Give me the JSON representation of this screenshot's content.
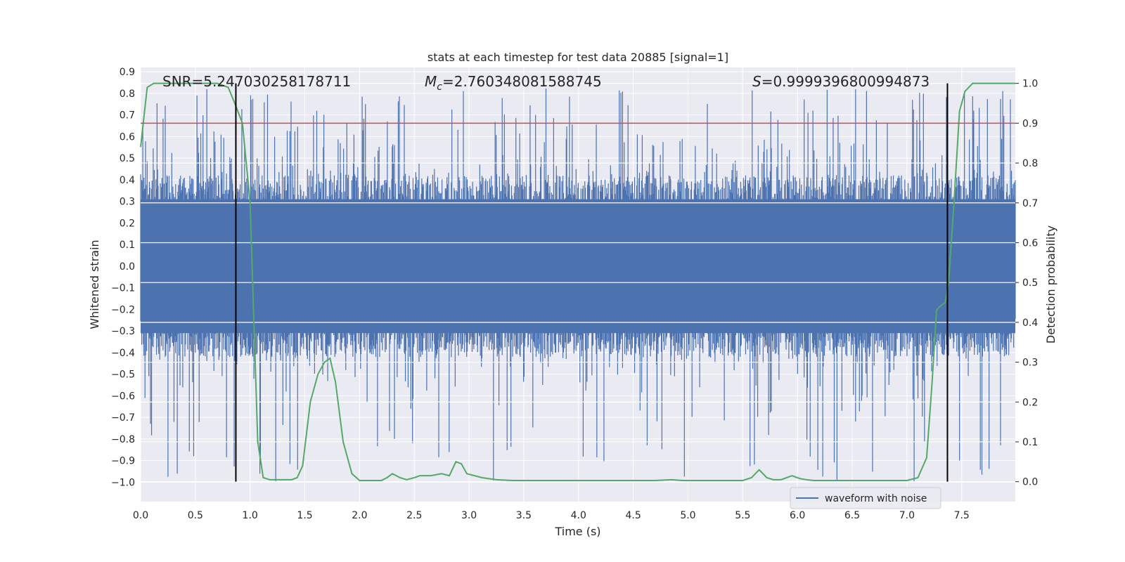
{
  "chart_data": {
    "type": "line",
    "title": "stats at each timestep for test data 20885 [signal=1]",
    "xlabel": "Time (s)",
    "ylabel": "Whitened strain",
    "y2label": "Detection probability",
    "xlim": [
      0.0,
      7.99
    ],
    "ylim": [
      -1.09,
      0.92
    ],
    "y2lim": [
      -0.05,
      1.04
    ],
    "x_ticks": [
      0.0,
      0.5,
      1.0,
      1.5,
      2.0,
      2.5,
      3.0,
      3.5,
      4.0,
      4.5,
      5.0,
      5.5,
      6.0,
      6.5,
      7.0,
      7.5
    ],
    "x_tick_labels": [
      "0.0",
      "0.5",
      "1.0",
      "1.5",
      "2.0",
      "2.5",
      "3.0",
      "3.5",
      "4.0",
      "4.5",
      "5.0",
      "5.5",
      "6.0",
      "6.5",
      "7.0",
      "7.5"
    ],
    "y_ticks": [
      -1.0,
      -0.9,
      -0.8,
      -0.7,
      -0.6,
      -0.5,
      -0.4,
      -0.3,
      -0.2,
      -0.1,
      0.0,
      0.1,
      0.2,
      0.3,
      0.4,
      0.5,
      0.6,
      0.7,
      0.8,
      0.9
    ],
    "y_tick_labels": [
      "−1.0",
      "−0.9",
      "−0.8",
      "−0.7",
      "−0.6",
      "−0.5",
      "−0.4",
      "−0.3",
      "−0.2",
      "−0.1",
      "0.0",
      "0.1",
      "0.2",
      "0.3",
      "0.4",
      "0.5",
      "0.6",
      "0.7",
      "0.8",
      "0.9"
    ],
    "y2_ticks": [
      0.0,
      0.1,
      0.2,
      0.3,
      0.4,
      0.5,
      0.6,
      0.7,
      0.8,
      0.9,
      1.0
    ],
    "y2_tick_labels": [
      "0.0",
      "0.1",
      "0.2",
      "0.3",
      "0.4",
      "0.5",
      "0.6",
      "0.7",
      "0.8",
      "0.9",
      "1.0"
    ],
    "annotations": {
      "snr": "SNR=5.247030258178711",
      "mc_symbol": "M",
      "mc_subscript": "c",
      "mc_value": "=2.760348081588745",
      "s_symbol": "S",
      "s_value": "=0.9999396800994873"
    },
    "threshold": 0.9,
    "vlines": [
      0.87,
      7.37
    ],
    "waveform": {
      "name": "waveform with noise",
      "samples": 1600,
      "band_upper": 0.42,
      "band_lower": -0.42,
      "spike_max": 0.83,
      "spike_min": -1.0
    },
    "probability": {
      "name": "detection probability",
      "x": [
        0.0,
        0.06,
        0.12,
        0.2,
        0.3,
        0.4,
        0.5,
        0.6,
        0.7,
        0.8,
        0.86,
        0.93,
        1.0,
        1.07,
        1.12,
        1.18,
        1.28,
        1.38,
        1.43,
        1.48,
        1.55,
        1.62,
        1.68,
        1.73,
        1.78,
        1.85,
        1.93,
        2.0,
        2.1,
        2.2,
        2.25,
        2.3,
        2.37,
        2.43,
        2.5,
        2.55,
        2.65,
        2.75,
        2.82,
        2.88,
        2.93,
        2.98,
        3.05,
        3.12,
        3.25,
        3.4,
        3.6,
        3.8,
        3.95,
        4.1,
        4.3,
        4.5,
        4.7,
        4.85,
        4.95,
        5.1,
        5.3,
        5.5,
        5.58,
        5.65,
        5.72,
        5.78,
        5.85,
        5.95,
        6.02,
        6.08,
        6.15,
        6.25,
        6.4,
        6.6,
        6.8,
        7.0,
        7.1,
        7.18,
        7.23,
        7.27,
        7.3,
        7.35,
        7.38,
        7.43,
        7.48,
        7.53,
        7.6,
        7.7,
        7.85,
        7.99
      ],
      "y": [
        0.84,
        0.99,
        1.0,
        1.0,
        1.0,
        1.0,
        1.0,
        1.0,
        1.0,
        0.99,
        0.95,
        0.9,
        0.7,
        0.1,
        0.01,
        0.005,
        0.005,
        0.005,
        0.01,
        0.04,
        0.2,
        0.27,
        0.3,
        0.31,
        0.25,
        0.1,
        0.02,
        0.003,
        0.003,
        0.003,
        0.01,
        0.02,
        0.01,
        0.005,
        0.01,
        0.015,
        0.015,
        0.02,
        0.015,
        0.05,
        0.045,
        0.02,
        0.015,
        0.01,
        0.005,
        0.003,
        0.003,
        0.003,
        0.003,
        0.003,
        0.003,
        0.003,
        0.003,
        0.005,
        0.003,
        0.003,
        0.003,
        0.003,
        0.01,
        0.03,
        0.01,
        0.005,
        0.005,
        0.015,
        0.008,
        0.005,
        0.003,
        0.003,
        0.003,
        0.003,
        0.003,
        0.003,
        0.01,
        0.06,
        0.25,
        0.43,
        0.44,
        0.45,
        0.5,
        0.7,
        0.93,
        0.98,
        1.0,
        1.0,
        1.0,
        1.0
      ]
    },
    "colors": {
      "waveform": "#4c72b0",
      "probability": "#55a868",
      "threshold": "#c44e52",
      "vline": "#000000",
      "axes_bg": "#eaeaf2",
      "grid": "#ffffff",
      "text": "#262626"
    },
    "legend": {
      "placement": "lower-right",
      "entries": [
        "waveform with noise"
      ]
    }
  }
}
